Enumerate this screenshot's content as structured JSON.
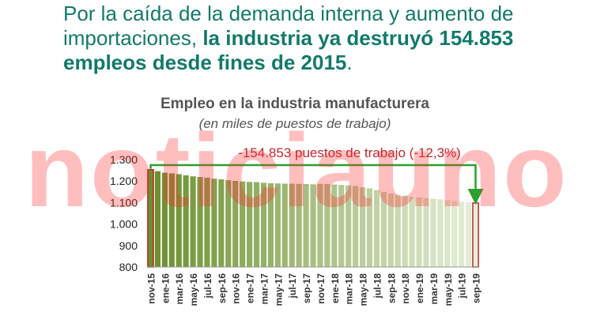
{
  "headline": {
    "part1": "Por la caída de la demanda interna y aumento de importaciones, ",
    "part2": "la industria ya destruyó 154.853 empleos desde fines de 2015",
    "part3": "."
  },
  "watermark": "noticiauno",
  "colors": {
    "headline": "#127a6a",
    "bar_start": "#6a8f2c",
    "bar_end": "#e6efd9",
    "bar_highlight_edge": "#c1272d",
    "annotation_line": "#2ca02c",
    "annotation_text": "#c1272d"
  },
  "chart_data": {
    "type": "bar",
    "title": "Empleo en la industria manufacturera",
    "subtitle": "(en miles de puestos de trabajo)",
    "annotation": "-154.853 puestos de trabajo (-12,3%)",
    "ylim": [
      800,
      1300
    ],
    "yticks": [
      800,
      900,
      1000,
      1100,
      1200,
      1300
    ],
    "ytick_labels": [
      "800",
      "900",
      "1.000",
      "1.100",
      "1.200",
      "1.300"
    ],
    "grid": false,
    "categories": [
      "nov-15",
      "dic-15",
      "ene-16",
      "feb-16",
      "mar-16",
      "abr-16",
      "may-16",
      "jun-16",
      "jul-16",
      "ago-16",
      "sep-16",
      "oct-16",
      "nov-16",
      "dic-16",
      "ene-17",
      "feb-17",
      "mar-17",
      "abr-17",
      "may-17",
      "jun-17",
      "jul-17",
      "ago-17",
      "sep-17",
      "oct-17",
      "nov-17",
      "dic-17",
      "ene-18",
      "feb-18",
      "mar-18",
      "abr-18",
      "may-18",
      "jun-18",
      "jul-18",
      "ago-18",
      "sep-18",
      "oct-18",
      "nov-18",
      "dic-18",
      "ene-19",
      "feb-19",
      "mar-19",
      "abr-19",
      "may-19",
      "jun-19",
      "jul-19",
      "ago-19",
      "sep-19"
    ],
    "xtick_labels": [
      "nov-15",
      "ene-16",
      "mar-16",
      "may-16",
      "jul-16",
      "sep-16",
      "nov-16",
      "ene-17",
      "mar-17",
      "may-17",
      "jul-17",
      "sep-17",
      "nov-17",
      "ene-18",
      "mar-18",
      "may-18",
      "jul-18",
      "sep-18",
      "nov-18",
      "ene-19",
      "mar-19",
      "may-19",
      "jul-19",
      "sep-19"
    ],
    "values": [
      1253,
      1246,
      1239,
      1236,
      1232,
      1227,
      1222,
      1219,
      1216,
      1211,
      1208,
      1204,
      1201,
      1198,
      1196,
      1195,
      1192,
      1190,
      1189,
      1188,
      1188,
      1187,
      1186,
      1185,
      1187,
      1186,
      1184,
      1182,
      1180,
      1177,
      1171,
      1166,
      1158,
      1150,
      1142,
      1136,
      1132,
      1127,
      1125,
      1121,
      1118,
      1115,
      1111,
      1107,
      1104,
      1101,
      1098
    ],
    "highlight_indices": [
      0,
      46
    ]
  }
}
